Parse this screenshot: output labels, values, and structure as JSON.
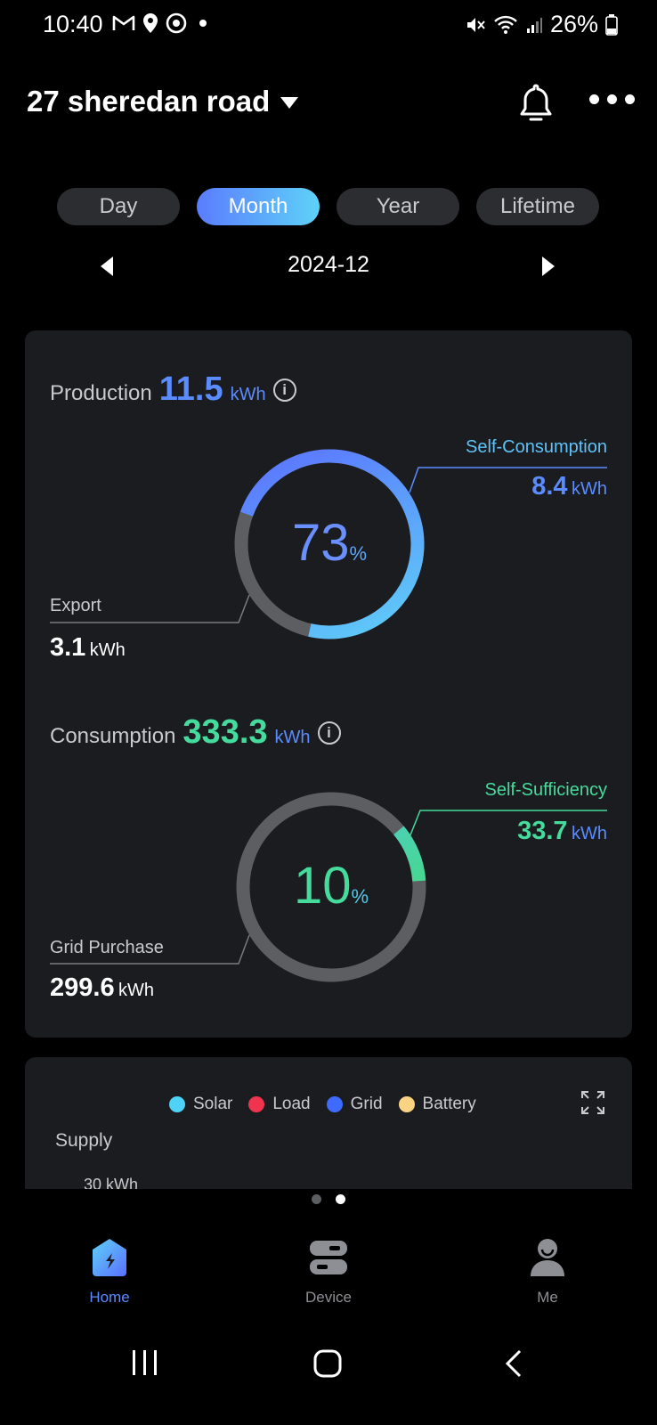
{
  "status_bar": {
    "time": "10:40",
    "battery": "26%",
    "icons_left": [
      "gmail-icon",
      "location-icon",
      "app-icon",
      "dot-icon"
    ],
    "icons_right": [
      "mute-icon",
      "wifi-icon",
      "signal-icon",
      "battery-icon"
    ]
  },
  "header": {
    "title": "27 sheredan road",
    "icons": [
      "dropdown-caret-icon",
      "bell-icon",
      "more-icon"
    ]
  },
  "tabs": [
    {
      "label": "Day",
      "active": false
    },
    {
      "label": "Month",
      "active": true
    },
    {
      "label": "Year",
      "active": false
    },
    {
      "label": "Lifetime",
      "active": false
    }
  ],
  "period": {
    "value": "2024-12"
  },
  "production": {
    "label": "Production",
    "value": "11.5",
    "unit": "kWh",
    "percent": "73",
    "percent_sign": "%",
    "percent_value": 0.73,
    "self_consumption": {
      "label": "Self-Consumption",
      "value": "8.4",
      "unit": "kWh"
    },
    "export": {
      "label": "Export",
      "value": "3.1",
      "unit": "kWh"
    }
  },
  "consumption": {
    "label": "Consumption",
    "value": "333.3",
    "unit": "kWh",
    "percent": "10",
    "percent_sign": "%",
    "percent_value": 0.1,
    "self_sufficiency": {
      "label": "Self-Sufficiency",
      "value": "33.7",
      "unit": "kWh"
    },
    "grid_purchase": {
      "label": "Grid Purchase",
      "value": "299.6",
      "unit": "kWh"
    }
  },
  "chart_card": {
    "legend": [
      {
        "label": "Solar",
        "color": "#4fd2f7"
      },
      {
        "label": "Load",
        "color": "#f0344f"
      },
      {
        "label": "Grid",
        "color": "#3d6bff"
      },
      {
        "label": "Battery",
        "color": "#fbd382"
      }
    ],
    "supply_label": "Supply",
    "axis_label": "30 kWh"
  },
  "pager": {
    "count": 2,
    "active_index": 1
  },
  "bottom_nav": [
    {
      "label": "Home",
      "active": true
    },
    {
      "label": "Device",
      "active": false
    },
    {
      "label": "Me",
      "active": false
    }
  ],
  "colors": {
    "accent_blue": "#5b8cff",
    "accent_green": "#44db9c",
    "card_bg": "#1b1c1f"
  }
}
